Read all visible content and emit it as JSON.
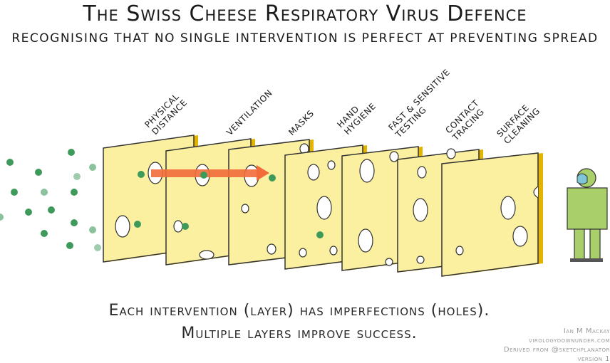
{
  "title": "The Swiss Cheese Respiratory Virus Defence",
  "subtitle": "Recognising that no single intervention is perfect at preventing spread",
  "layers": [
    {
      "line1": "Physical",
      "line2": "Distance"
    },
    {
      "line1": "Ventilation",
      "line2": ""
    },
    {
      "line1": "Masks",
      "line2": ""
    },
    {
      "line1": "Hand",
      "line2": "Hygiene"
    },
    {
      "line1": "Fast & Sensitive",
      "line2": "Testing"
    },
    {
      "line1": "Contact",
      "line2": "Tracing"
    },
    {
      "line1": "Surface",
      "line2": "Cleaning"
    }
  ],
  "caption": {
    "line1": "Each intervention (layer) has imperfections (holes).",
    "line2": "Multiple layers improve success."
  },
  "credits": {
    "author": "Ian M Mackay",
    "site": "virologydownunder.com",
    "derived": "Derived from @sketchplanator",
    "version": "version 1"
  },
  "colors": {
    "cheese": "#fbf0a0",
    "cheese_side": "#e2b400",
    "arrow": "#f26b3a",
    "virus": "#3e9a5a",
    "person": "#a9cf6a"
  }
}
